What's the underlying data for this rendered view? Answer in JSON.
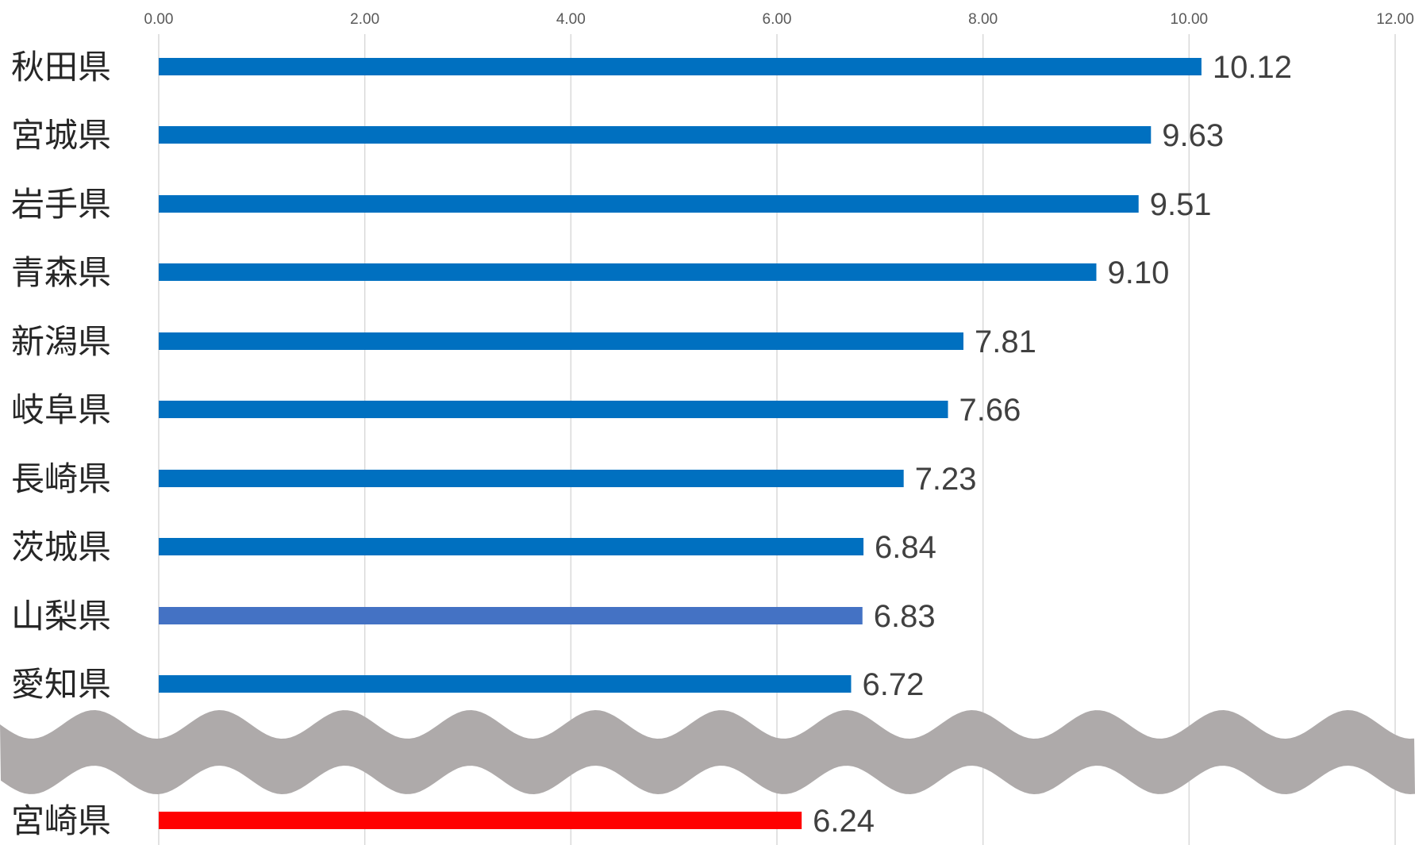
{
  "chart_data": {
    "type": "bar",
    "orientation": "horizontal",
    "xlim": [
      0,
      12
    ],
    "x_ticks": [
      "0.00",
      "2.00",
      "4.00",
      "6.00",
      "8.00",
      "10.00",
      "12.00"
    ],
    "x_tick_values": [
      0,
      2,
      4,
      6,
      8,
      10,
      12
    ],
    "grid": true,
    "axis_break": "wavy band between 愛知県 and 宮崎県",
    "categories": [
      "秋田県",
      "宮城県",
      "岩手県",
      "青森県",
      "新潟県",
      "岐阜県",
      "長崎県",
      "茨城県",
      "山梨県",
      "愛知県",
      "宮崎県"
    ],
    "values": [
      10.12,
      9.63,
      9.51,
      9.1,
      7.81,
      7.66,
      7.23,
      6.84,
      6.83,
      6.72,
      6.24
    ],
    "value_labels": [
      "10.12",
      "9.63",
      "9.51",
      "9.10",
      "7.81",
      "7.66",
      "7.23",
      "6.84",
      "6.83",
      "6.72",
      "6.24"
    ],
    "bar_colors": [
      "#0070C0",
      "#0070C0",
      "#0070C0",
      "#0070C0",
      "#0070C0",
      "#0070C0",
      "#0070C0",
      "#0070C0",
      "#4472C4",
      "#0070C0",
      "#FF0000"
    ],
    "gridline_color": "#D9D9D9",
    "break_color": "#AEAAAA"
  }
}
